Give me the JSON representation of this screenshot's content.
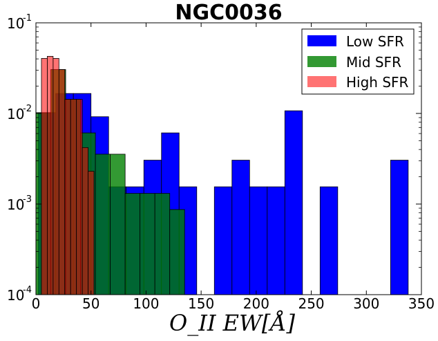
{
  "chart_data": {
    "type": "bar",
    "title": "NGC0036",
    "xlabel": "O_II EW[Å]",
    "ylabel": "",
    "yscale": "log",
    "xlim": [
      0,
      350
    ],
    "ylim": [
      0.0001,
      0.1
    ],
    "x_ticks": [
      0,
      50,
      100,
      150,
      200,
      250,
      300,
      350
    ],
    "x_tick_labels": [
      "0",
      "50",
      "100",
      "150",
      "200",
      "250",
      "300",
      "350"
    ],
    "y_ticks": [
      {
        "base": "10",
        "exp": "-4",
        "value": 0.0001
      },
      {
        "base": "10",
        "exp": "-3",
        "value": 0.001
      },
      {
        "base": "10",
        "exp": "-2",
        "value": 0.01
      },
      {
        "base": "10",
        "exp": "-1",
        "value": 0.1
      }
    ],
    "legend_position": "top-right",
    "series": [
      {
        "name": "Low SFR",
        "color": "#0000ff",
        "opacity": 1,
        "bins": [
          {
            "x0": 2,
            "x1": 18,
            "value": 0.0102
          },
          {
            "x0": 18,
            "x1": 34,
            "value": 0.0166
          },
          {
            "x0": 34,
            "x1": 50,
            "value": 0.0166
          },
          {
            "x0": 50,
            "x1": 66,
            "value": 0.0092
          },
          {
            "x0": 66,
            "x1": 82,
            "value": 0.00155
          },
          {
            "x0": 82,
            "x1": 98,
            "value": 0.00155
          },
          {
            "x0": 98,
            "x1": 114,
            "value": 0.00305
          },
          {
            "x0": 114,
            "x1": 130,
            "value": 0.0061
          },
          {
            "x0": 130,
            "x1": 146,
            "value": 0.00155
          },
          {
            "x0": 162,
            "x1": 178,
            "value": 0.00155
          },
          {
            "x0": 178,
            "x1": 194,
            "value": 0.00305
          },
          {
            "x0": 194,
            "x1": 210,
            "value": 0.00155
          },
          {
            "x0": 210,
            "x1": 226,
            "value": 0.00155
          },
          {
            "x0": 226,
            "x1": 242,
            "value": 0.0107
          },
          {
            "x0": 258,
            "x1": 274,
            "value": 0.00155
          },
          {
            "x0": 322,
            "x1": 338,
            "value": 0.00305
          }
        ]
      },
      {
        "name": "Mid SFR",
        "color": "#008000",
        "opacity": 0.8,
        "bins": [
          {
            "x0": 0,
            "x1": 13.5,
            "value": 0.0102
          },
          {
            "x0": 13.5,
            "x1": 27,
            "value": 0.0305
          },
          {
            "x0": 27,
            "x1": 40.5,
            "value": 0.0143
          },
          {
            "x0": 40.5,
            "x1": 54,
            "value": 0.0061
          },
          {
            "x0": 54,
            "x1": 67.5,
            "value": 0.00355
          },
          {
            "x0": 67.5,
            "x1": 81,
            "value": 0.00355
          },
          {
            "x0": 81,
            "x1": 94.5,
            "value": 0.00131
          },
          {
            "x0": 94.5,
            "x1": 108,
            "value": 0.00131
          },
          {
            "x0": 108,
            "x1": 121.5,
            "value": 0.00131
          },
          {
            "x0": 121.5,
            "x1": 135,
            "value": 0.00087
          }
        ]
      },
      {
        "name": "High SFR",
        "color": "#ff0000",
        "opacity": 0.55,
        "bins": [
          {
            "x0": 5,
            "x1": 10.3,
            "value": 0.0405
          },
          {
            "x0": 10.3,
            "x1": 15.6,
            "value": 0.0427
          },
          {
            "x0": 15.6,
            "x1": 20.9,
            "value": 0.0405
          },
          {
            "x0": 20.9,
            "x1": 26.2,
            "value": 0.0305
          },
          {
            "x0": 26.2,
            "x1": 31.5,
            "value": 0.0143
          },
          {
            "x0": 31.5,
            "x1": 36.8,
            "value": 0.0143
          },
          {
            "x0": 36.8,
            "x1": 42.1,
            "value": 0.0143
          },
          {
            "x0": 42.1,
            "x1": 47.4,
            "value": 0.0042
          },
          {
            "x0": 47.4,
            "x1": 52.7,
            "value": 0.0023
          }
        ]
      }
    ]
  }
}
